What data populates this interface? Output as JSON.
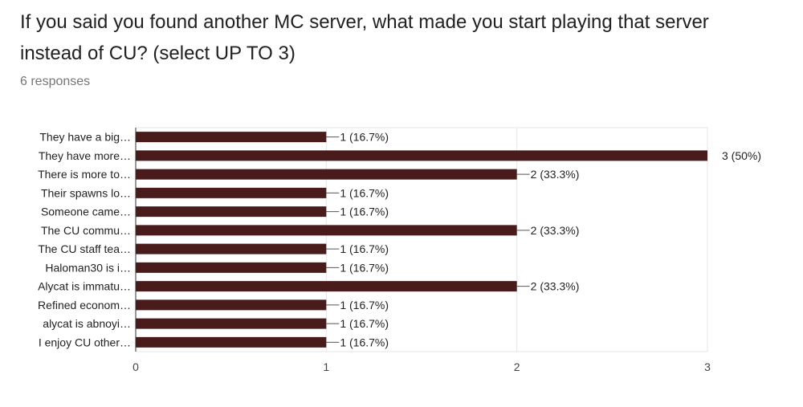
{
  "header": {
    "title": "If you said you found another MC server, what made you start playing that server instead of CU? (select UP TO 3)",
    "responses": "6 responses"
  },
  "colors": {
    "bar": "#4a1b1b",
    "grid": "#e6e6e6"
  },
  "chart_data": {
    "type": "bar",
    "orientation": "horizontal",
    "categories": [
      "They have a big…",
      "They have more…",
      "There is more to…",
      "Their spawns lo…",
      "Someone came…",
      "The CU commu…",
      "The CU staff tea…",
      "Haloman30 is i…",
      "Alycat is immatu…",
      "Refined econom…",
      "alycat is abnoyi…",
      "I enjoy CU other…"
    ],
    "values": [
      1,
      3,
      2,
      1,
      1,
      2,
      1,
      1,
      2,
      1,
      1,
      1
    ],
    "data_labels": [
      "1 (16.7%)",
      "3 (50%)",
      "2 (33.3%)",
      "1 (16.7%)",
      "1 (16.7%)",
      "2 (33.3%)",
      "1 (16.7%)",
      "1 (16.7%)",
      "2 (33.3%)",
      "1 (16.7%)",
      "1 (16.7%)",
      "1 (16.7%)"
    ],
    "xticks": [
      "0",
      "1",
      "2",
      "3"
    ],
    "xlim": [
      0,
      3
    ],
    "grid": true
  }
}
